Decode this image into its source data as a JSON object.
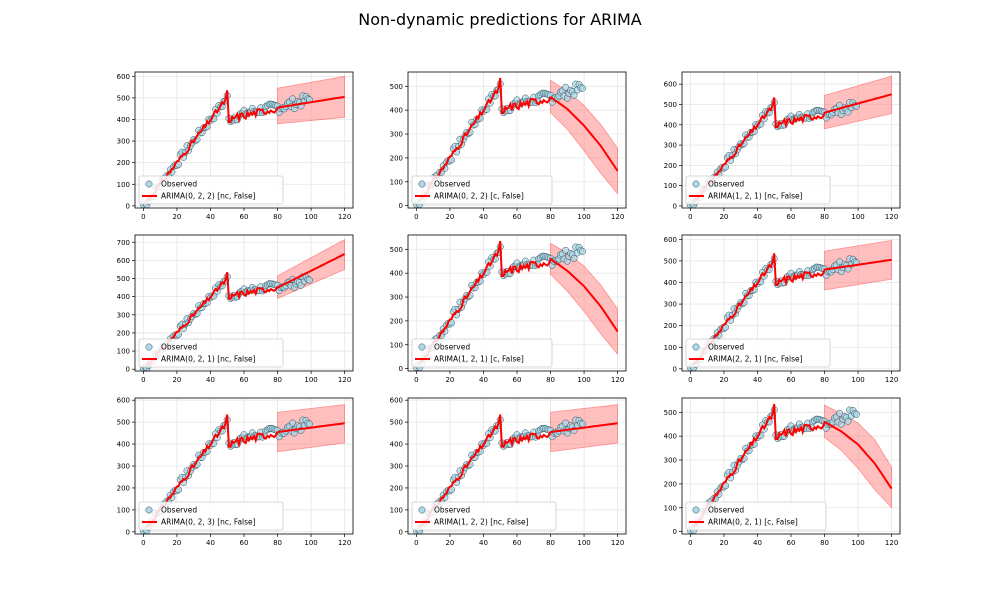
{
  "figure": {
    "title": "Non-dynamic predictions for ARIMA"
  },
  "colors": {
    "observed_fill": "#add8e6",
    "observed_edge": "#2f4f5f",
    "prediction_line": "#ff0000",
    "ci_fill": "#ff8080",
    "grid": "#e6e6e6"
  },
  "legend": {
    "observed_label": "Observed",
    "placement": "lower left"
  },
  "chart_data": [
    {
      "type": "line",
      "title": "",
      "series_name": "ARIMA(0, 2, 2) [nc, False]",
      "xlim": [
        -5,
        125
      ],
      "ylim": [
        -10,
        620
      ],
      "xticks": [
        0,
        20,
        40,
        60,
        80,
        100,
        120
      ],
      "yticks": [
        0,
        100,
        200,
        300,
        400,
        500,
        600
      ],
      "pred_start": 50,
      "pred_end_obs": 100,
      "forecast": {
        "x": [
          80,
          120
        ],
        "y": [
          455,
          505
        ],
        "lower": [
          380,
          410
        ],
        "upper": [
          545,
          600
        ]
      },
      "grid": true
    },
    {
      "type": "line",
      "title": "",
      "series_name": "ARIMA(0, 2, 2) [c, False]",
      "xlim": [
        -5,
        125
      ],
      "ylim": [
        -10,
        560
      ],
      "xticks": [
        0,
        20,
        40,
        60,
        80,
        100,
        120
      ],
      "yticks": [
        0,
        100,
        200,
        300,
        400,
        500
      ],
      "pred_start": 50,
      "pred_end_obs": 100,
      "forecast": {
        "x": [
          80,
          90,
          100,
          110,
          120
        ],
        "y": [
          455,
          405,
          335,
          250,
          145
        ],
        "lower": [
          390,
          320,
          230,
          135,
          50
        ],
        "upper": [
          525,
          480,
          420,
          340,
          240
        ]
      },
      "grid": true
    },
    {
      "type": "line",
      "title": "",
      "series_name": "ARIMA(1, 2, 1) [nc, False]",
      "xlim": [
        -5,
        125
      ],
      "ylim": [
        -10,
        660
      ],
      "xticks": [
        0,
        20,
        40,
        60,
        80,
        100,
        120
      ],
      "yticks": [
        0,
        100,
        200,
        300,
        400,
        500,
        600
      ],
      "pred_start": 50,
      "pred_end_obs": 100,
      "forecast": {
        "x": [
          80,
          120
        ],
        "y": [
          460,
          550
        ],
        "lower": [
          380,
          455
        ],
        "upper": [
          545,
          640
        ]
      },
      "grid": true
    },
    {
      "type": "line",
      "title": "",
      "series_name": "ARIMA(0, 2, 1) [nc, False]",
      "xlim": [
        -5,
        125
      ],
      "ylim": [
        -10,
        740
      ],
      "xticks": [
        0,
        20,
        40,
        60,
        80,
        100,
        120
      ],
      "yticks": [
        0,
        100,
        200,
        300,
        400,
        500,
        600,
        700
      ],
      "pred_start": 50,
      "pred_end_obs": 100,
      "forecast": {
        "x": [
          80,
          120
        ],
        "y": [
          450,
          635
        ],
        "lower": [
          390,
          550
        ],
        "upper": [
          515,
          715
        ]
      },
      "grid": true
    },
    {
      "type": "line",
      "title": "",
      "series_name": "ARIMA(1, 2, 1) [c, False]",
      "xlim": [
        -5,
        125
      ],
      "ylim": [
        -10,
        560
      ],
      "xticks": [
        0,
        20,
        40,
        60,
        80,
        100,
        120
      ],
      "yticks": [
        0,
        100,
        200,
        300,
        400,
        500
      ],
      "pred_start": 50,
      "pred_end_obs": 100,
      "forecast": {
        "x": [
          80,
          90,
          100,
          110,
          120
        ],
        "y": [
          460,
          410,
          345,
          260,
          155
        ],
        "lower": [
          395,
          325,
          240,
          145,
          60
        ],
        "upper": [
          525,
          485,
          430,
          350,
          250
        ]
      },
      "grid": true
    },
    {
      "type": "line",
      "title": "",
      "series_name": "ARIMA(2, 2, 1) [nc, False]",
      "xlim": [
        -5,
        125
      ],
      "ylim": [
        -10,
        620
      ],
      "xticks": [
        0,
        20,
        40,
        60,
        80,
        100,
        120
      ],
      "yticks": [
        0,
        100,
        200,
        300,
        400,
        500,
        600
      ],
      "pred_start": 50,
      "pred_end_obs": 100,
      "forecast": {
        "x": [
          80,
          120
        ],
        "y": [
          460,
          505
        ],
        "lower": [
          365,
          415
        ],
        "upper": [
          545,
          595
        ]
      },
      "grid": true
    },
    {
      "type": "line",
      "title": "",
      "series_name": "ARIMA(0, 2, 3) [nc, False]",
      "xlim": [
        -5,
        125
      ],
      "ylim": [
        -10,
        610
      ],
      "xticks": [
        0,
        20,
        40,
        60,
        80,
        100,
        120
      ],
      "yticks": [
        0,
        100,
        200,
        300,
        400,
        500,
        600
      ],
      "pred_start": 50,
      "pred_end_obs": 100,
      "forecast": {
        "x": [
          80,
          120
        ],
        "y": [
          455,
          495
        ],
        "lower": [
          365,
          405
        ],
        "upper": [
          545,
          580
        ]
      },
      "grid": true
    },
    {
      "type": "line",
      "title": "",
      "series_name": "ARIMA(1, 2, 2) [nc, False]",
      "xlim": [
        -5,
        125
      ],
      "ylim": [
        -10,
        610
      ],
      "xticks": [
        0,
        20,
        40,
        60,
        80,
        100,
        120
      ],
      "yticks": [
        0,
        100,
        200,
        300,
        400,
        500,
        600
      ],
      "pred_start": 50,
      "pred_end_obs": 100,
      "forecast": {
        "x": [
          80,
          120
        ],
        "y": [
          455,
          495
        ],
        "lower": [
          365,
          405
        ],
        "upper": [
          545,
          580
        ]
      },
      "grid": true
    },
    {
      "type": "line",
      "title": "",
      "series_name": "ARIMA(0, 2, 1) [c, False]",
      "xlim": [
        -5,
        125
      ],
      "ylim": [
        -10,
        560
      ],
      "xticks": [
        0,
        20,
        40,
        60,
        80,
        100,
        120
      ],
      "yticks": [
        0,
        100,
        200,
        300,
        400,
        500
      ],
      "pred_start": 50,
      "pred_end_obs": 100,
      "forecast": {
        "x": [
          80,
          90,
          100,
          110,
          120
        ],
        "y": [
          460,
          420,
          365,
          285,
          180
        ],
        "lower": [
          395,
          340,
          265,
          175,
          100
        ],
        "upper": [
          530,
          495,
          455,
          385,
          270
        ]
      },
      "grid": true
    }
  ]
}
